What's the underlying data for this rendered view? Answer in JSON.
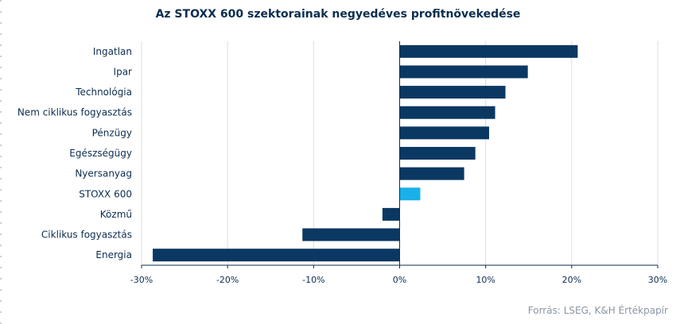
{
  "chart_data": {
    "type": "bar",
    "orientation": "horizontal",
    "title": "Az STOXX 600 szektorainak negyedéves profitnövekedése",
    "categories": [
      "Ingatlan",
      "Ipar",
      "Technológia",
      "Nem ciklikus fogyasztás",
      "Pénzügy",
      "Egészségügy",
      "Nyersanyag",
      "STOXX 600",
      "Közmű",
      "Ciklikus fogyasztás",
      "Energia"
    ],
    "values": [
      20.7,
      14.9,
      12.3,
      11.1,
      10.4,
      8.8,
      7.5,
      2.4,
      -2.0,
      -11.3,
      -28.7
    ],
    "highlight_category": "STOXX 600",
    "xlim": [
      -30,
      30
    ],
    "xticks": [
      -30,
      -20,
      -10,
      0,
      10,
      20,
      30
    ],
    "xtick_labels": [
      "-30%",
      "-20%",
      "-10%",
      "0%",
      "10%",
      "20%",
      "30%"
    ],
    "grid": "vertical",
    "colors": {
      "bar": "#0b3863",
      "highlight": "#1ab0ea",
      "grid": "#dcdcdc",
      "axis": "#0b2d4f"
    }
  },
  "source": "Forrás: LSEG, K&H Értékpapír"
}
